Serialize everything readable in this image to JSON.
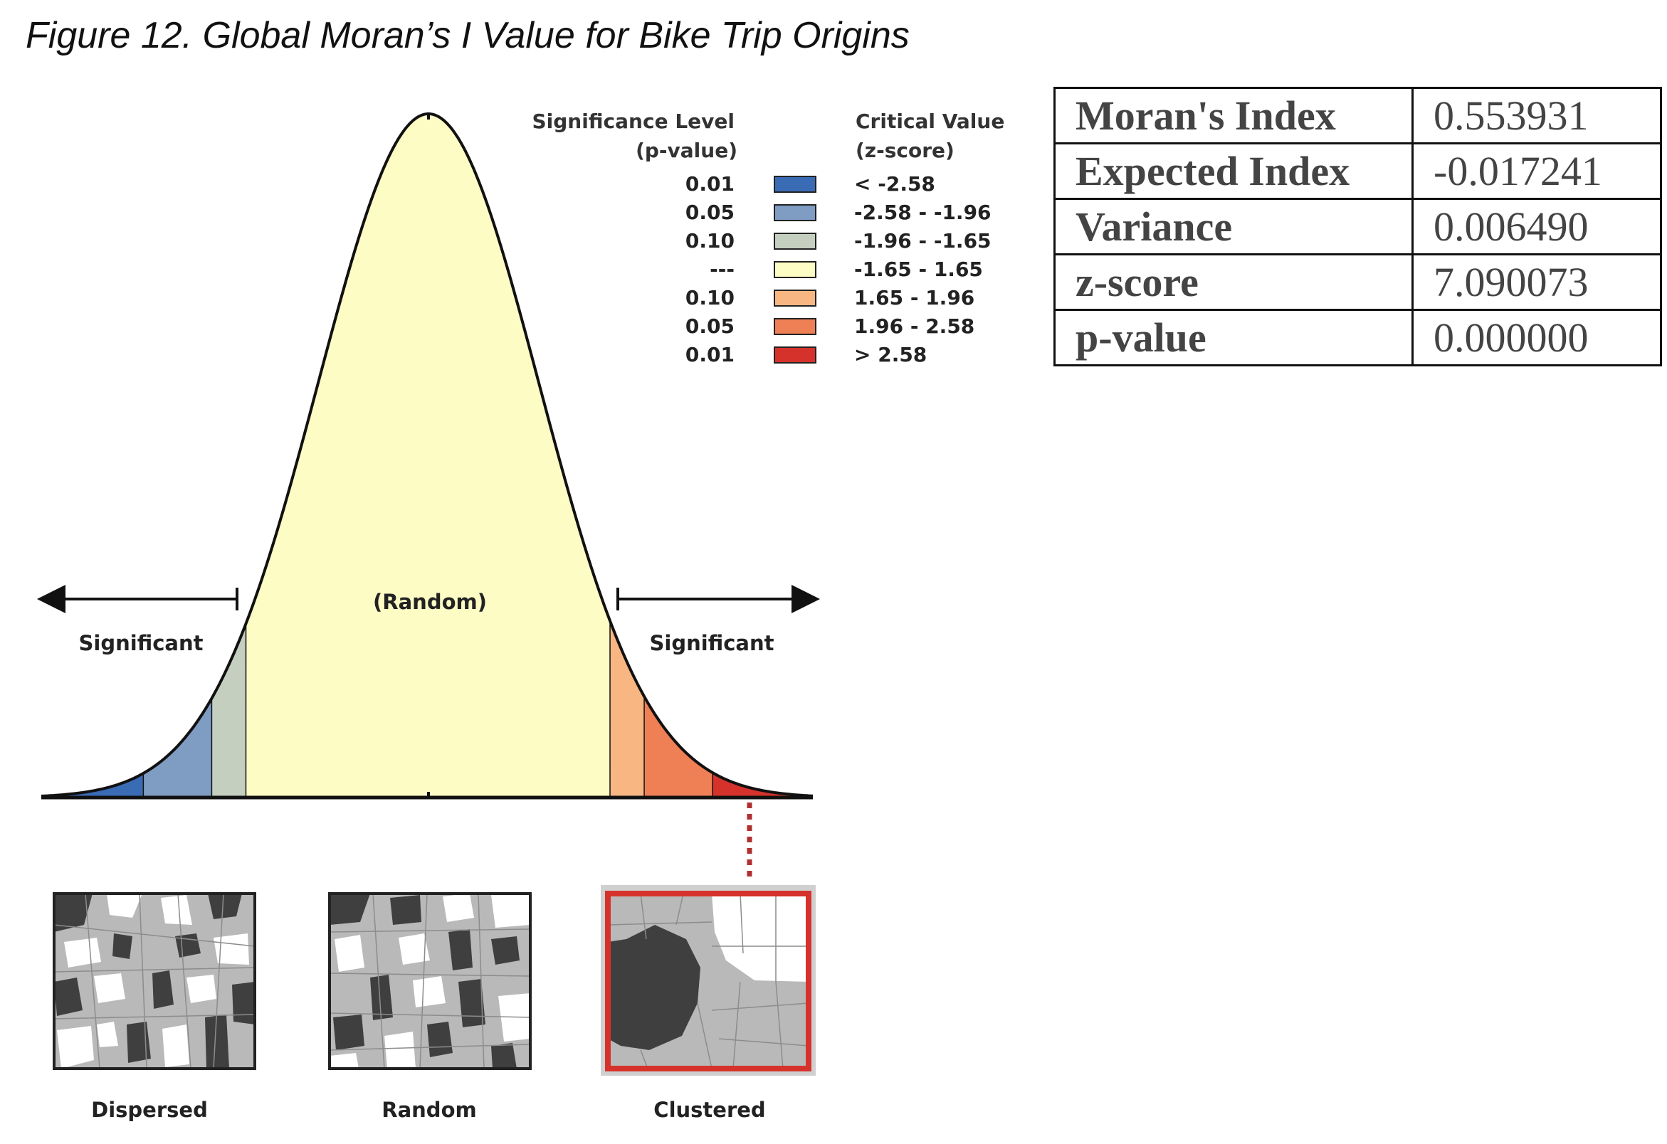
{
  "caption": "Figure 12. Global Moran’s I Value for Bike Trip Origins",
  "legend": {
    "head_sig_1": "Significance Level",
    "head_sig_2": "(p-value)",
    "head_crit_1": "Critical Value",
    "head_crit_2": "(z-score)",
    "rows": [
      {
        "p": "0.01",
        "z": "< -2.58",
        "color": "#3a6bb5"
      },
      {
        "p": "0.05",
        "z": "-2.58 - -1.96",
        "color": "#7f9cc2"
      },
      {
        "p": "0.10",
        "z": "-1.96 - -1.65",
        "color": "#c4cfc0"
      },
      {
        "p": "---",
        "z": "-1.65 - 1.65",
        "color": "#fdfcc4"
      },
      {
        "p": "0.10",
        "z": "1.65 - 1.96",
        "color": "#f8b683"
      },
      {
        "p": "0.05",
        "z": "1.96 - 2.58",
        "color": "#ef7f55"
      },
      {
        "p": "0.01",
        "z": "> 2.58",
        "color": "#d6322c"
      }
    ]
  },
  "curve": {
    "label_random": "(Random)",
    "label_sig_left": "Significant",
    "label_sig_right": "Significant"
  },
  "thumbnails": [
    "Dispersed",
    "Random",
    "Clustered"
  ],
  "stats": [
    {
      "label": "Moran's Index",
      "value": "0.553931"
    },
    {
      "label": "Expected Index",
      "value": "-0.017241"
    },
    {
      "label": "Variance",
      "value": "0.006490"
    },
    {
      "label": "z-score",
      "value": "7.090073"
    },
    {
      "label": "p-value",
      "value": "0.000000"
    }
  ]
}
